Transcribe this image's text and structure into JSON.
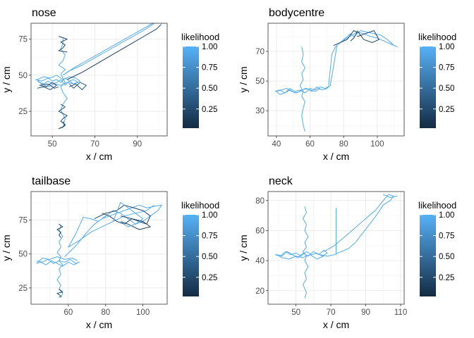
{
  "chart_data": [
    {
      "type": "line",
      "title": "nose",
      "xlabel": "x / cm",
      "ylabel": "y / cm",
      "xlim": [
        40,
        104
      ],
      "ylim": [
        8,
        86
      ],
      "xticks": [
        50,
        70,
        90
      ],
      "yticks": [
        25,
        50,
        75
      ],
      "legend": {
        "title": "likelihood",
        "ticks": [
          0.25,
          0.5,
          0.75,
          1.0
        ],
        "tick_labels": [
          "0.25",
          "0.50",
          "0.75",
          "1.00"
        ],
        "range": [
          0.02,
          1.0
        ],
        "low_color": "#132B43",
        "high_color": "#56B1F7",
        "placement": "right"
      },
      "grid": true,
      "series": [
        {
          "likelihood": 0.95,
          "x": [
            55,
            55,
            54,
            56,
            55,
            53,
            56,
            54,
            55,
            56,
            54,
            55,
            57,
            55,
            54,
            56,
            55
          ],
          "y": [
            76,
            72,
            68,
            64,
            60,
            57,
            54,
            51,
            48,
            45,
            42,
            38,
            34,
            30,
            26,
            20,
            14
          ]
        },
        {
          "likelihood": 0.25,
          "x": [
            54,
            56,
            53,
            57,
            55,
            54,
            56,
            55,
            53,
            56,
            55
          ],
          "y": [
            30,
            28,
            25,
            22,
            20,
            18,
            16,
            14,
            13,
            15,
            18
          ]
        },
        {
          "likelihood": 0.25,
          "x": [
            53,
            57,
            54,
            56,
            55,
            53,
            57
          ],
          "y": [
            77,
            75,
            73,
            71,
            69,
            67,
            66
          ]
        },
        {
          "likelihood": 0.95,
          "x": [
            42,
            45,
            48,
            50,
            52,
            54,
            56,
            58,
            60,
            62,
            60,
            58,
            56,
            54,
            52,
            50,
            48,
            46,
            44,
            43,
            46,
            49,
            52,
            55,
            58,
            61,
            63,
            60,
            57,
            54,
            51,
            48,
            45,
            43
          ],
          "y": [
            47,
            46,
            48,
            46,
            47,
            45,
            48,
            46,
            47,
            45,
            44,
            46,
            43,
            47,
            45,
            44,
            46,
            44,
            45,
            47,
            49,
            48,
            50,
            47,
            49,
            48,
            46,
            44,
            45,
            43,
            44,
            42,
            44,
            46
          ]
        },
        {
          "likelihood": 0.3,
          "x": [
            43,
            46,
            49,
            52,
            50,
            47,
            44,
            48,
            51,
            53
          ],
          "y": [
            41,
            42,
            40,
            43,
            45,
            42,
            43,
            44,
            41,
            42
          ]
        },
        {
          "likelihood": 0.3,
          "x": [
            58,
            61,
            64,
            66,
            63,
            60,
            58
          ],
          "y": [
            42,
            44,
            40,
            43,
            45,
            41,
            44
          ]
        },
        {
          "likelihood": 0.95,
          "x": [
            55,
            60,
            66,
            72,
            78,
            84,
            90,
            96,
            100
          ],
          "y": [
            50,
            55,
            60,
            65,
            70,
            75,
            80,
            85,
            88
          ]
        },
        {
          "likelihood": 0.95,
          "x": [
            100,
            94,
            88,
            82,
            76,
            70,
            64,
            58,
            56
          ],
          "y": [
            88,
            82,
            77,
            72,
            67,
            62,
            57,
            53,
            51
          ]
        },
        {
          "likelihood": 0.15,
          "x": [
            57,
            64,
            71,
            78,
            85,
            92,
            99,
            101
          ],
          "y": [
            47,
            52,
            58,
            64,
            70,
            76,
            82,
            85
          ]
        },
        {
          "likelihood": 0.95,
          "x": [
            101,
            102,
            103
          ],
          "y": [
            85,
            87,
            86
          ]
        }
      ]
    },
    {
      "type": "line",
      "title": "bodycentre",
      "xlabel": "x / cm",
      "ylabel": "y / cm",
      "xlim": [
        35,
        116
      ],
      "ylim": [
        13,
        89
      ],
      "xticks": [
        40,
        60,
        80,
        100
      ],
      "yticks": [
        30,
        50,
        70
      ],
      "legend": {
        "title": "likelihood",
        "ticks": [
          0.25,
          0.5,
          0.75,
          1.0
        ],
        "tick_labels": [
          "0.25",
          "0.50",
          "0.75",
          "1.00"
        ],
        "range": [
          0.02,
          1.0
        ],
        "low_color": "#132B43",
        "high_color": "#56B1F7",
        "placement": "right"
      },
      "grid": true,
      "series": [
        {
          "likelihood": 0.95,
          "x": [
            55,
            56,
            55,
            57,
            55,
            56,
            54,
            56,
            55,
            57,
            56,
            55,
            56,
            57
          ],
          "y": [
            73,
            68,
            63,
            59,
            55,
            51,
            47,
            43,
            40,
            36,
            32,
            27,
            20,
            16
          ]
        },
        {
          "likelihood": 0.95,
          "x": [
            39,
            42,
            45,
            48,
            51,
            54,
            57,
            60,
            63,
            66,
            69,
            72,
            70,
            67,
            64,
            61,
            58,
            55,
            52,
            49,
            46,
            43,
            40,
            42,
            45,
            48,
            51,
            54,
            57,
            60,
            63,
            66
          ],
          "y": [
            43,
            44,
            42,
            45,
            43,
            44,
            42,
            45,
            44,
            46,
            45,
            47,
            45,
            44,
            46,
            43,
            45,
            44,
            42,
            43,
            45,
            44,
            43,
            41,
            42,
            44,
            42,
            43,
            45,
            44,
            43,
            45
          ]
        },
        {
          "likelihood": 0.95,
          "x": [
            72,
            74,
            76,
            80,
            84,
            86,
            90,
            94,
            98,
            102,
            106,
            110,
            112,
            108,
            104,
            100,
            96,
            92,
            88,
            85,
            82,
            78,
            75,
            73,
            71
          ],
          "y": [
            47,
            60,
            74,
            78,
            82,
            80,
            84,
            83,
            82,
            81,
            78,
            74,
            73,
            75,
            77,
            79,
            80,
            82,
            83,
            81,
            79,
            76,
            73,
            68,
            47
          ]
        },
        {
          "likelihood": 0.2,
          "x": [
            74,
            78,
            82,
            86,
            88,
            86,
            84
          ],
          "y": [
            74,
            76,
            78,
            84,
            83,
            79,
            77
          ]
        },
        {
          "likelihood": 0.2,
          "x": [
            88,
            93,
            98,
            101,
            97,
            92,
            88
          ],
          "y": [
            80,
            82,
            84,
            78,
            76,
            78,
            84
          ]
        }
      ]
    },
    {
      "type": "line",
      "title": "tailbase",
      "xlabel": "x / cm",
      "ylabel": "y / cm",
      "xlim": [
        40,
        113
      ],
      "ylim": [
        13,
        96
      ],
      "xticks": [
        60,
        80,
        100
      ],
      "yticks": [
        25,
        50,
        75
      ],
      "legend": {
        "title": "likelihood",
        "ticks": [
          0.25,
          0.5,
          0.75,
          1.0
        ],
        "tick_labels": [
          "0.25",
          "0.50",
          "0.75",
          "1.00"
        ],
        "range": [
          0.02,
          1.0
        ],
        "low_color": "#132B43",
        "high_color": "#56B1F7",
        "placement": "right"
      },
      "grid": true,
      "series": [
        {
          "likelihood": 0.95,
          "x": [
            56,
            55,
            57,
            55,
            56,
            54,
            56,
            55,
            57,
            55,
            56,
            54,
            56,
            55,
            57,
            56
          ],
          "y": [
            71,
            67,
            63,
            59,
            55,
            51,
            48,
            45,
            42,
            39,
            35,
            31,
            27,
            24,
            21,
            18
          ]
        },
        {
          "likelihood": 0.2,
          "x": [
            55,
            57,
            54,
            56,
            55,
            56
          ],
          "y": [
            72,
            70,
            68,
            66,
            64,
            62
          ]
        },
        {
          "likelihood": 0.2,
          "x": [
            55,
            57,
            54,
            56,
            55
          ],
          "y": [
            24,
            22,
            21,
            19,
            18
          ]
        },
        {
          "likelihood": 0.95,
          "x": [
            43,
            46,
            49,
            52,
            55,
            58,
            61,
            64,
            66,
            63,
            60,
            57,
            54,
            51,
            48,
            45,
            43,
            46,
            50,
            54,
            58,
            62,
            65
          ],
          "y": [
            45,
            44,
            46,
            43,
            45,
            44,
            46,
            43,
            44,
            42,
            44,
            41,
            43,
            45,
            42,
            44,
            43,
            47,
            46,
            48,
            46,
            47,
            45
          ]
        },
        {
          "likelihood": 0.95,
          "x": [
            58,
            64,
            70,
            74,
            78,
            82,
            86,
            90,
            94,
            98,
            102,
            106,
            110,
            108,
            104,
            100,
            96,
            92,
            88,
            84,
            80,
            76,
            72,
            68,
            64,
            60,
            66,
            72,
            78,
            84,
            90,
            96,
            102,
            106
          ],
          "y": [
            48,
            56,
            66,
            72,
            76,
            78,
            80,
            82,
            84,
            86,
            84,
            85,
            86,
            82,
            78,
            74,
            72,
            76,
            80,
            82,
            78,
            74,
            76,
            77,
            65,
            55,
            60,
            66,
            70,
            74,
            78,
            80,
            82,
            86
          ]
        },
        {
          "likelihood": 0.2,
          "x": [
            74,
            80,
            86,
            90,
            95,
            100,
            104,
            102,
            98,
            94,
            90,
            86,
            82,
            78
          ],
          "y": [
            76,
            80,
            82,
            86,
            84,
            82,
            78,
            72,
            74,
            76,
            72,
            74,
            78,
            80
          ]
        },
        {
          "likelihood": 0.2,
          "x": [
            88,
            94,
            100,
            104,
            98,
            92,
            88
          ],
          "y": [
            78,
            76,
            74,
            70,
            68,
            72,
            74
          ]
        },
        {
          "likelihood": 0.95,
          "x": [
            84,
            88,
            92,
            96,
            100,
            96,
            92,
            88
          ],
          "y": [
            74,
            88,
            84,
            80,
            76,
            72,
            70,
            74
          ]
        }
      ]
    },
    {
      "type": "line",
      "title": "neck",
      "xlabel": "x / cm",
      "ylabel": "y / cm",
      "xlim": [
        34,
        112
      ],
      "ylim": [
        11,
        86
      ],
      "xticks": [
        50,
        70,
        90,
        110
      ],
      "yticks": [
        20,
        40,
        60,
        80
      ],
      "legend": {
        "title": "likelihood",
        "ticks": [
          0.25,
          0.5,
          0.75,
          1.0
        ],
        "tick_labels": [
          "0.25",
          "0.50",
          "0.75",
          "1.00"
        ],
        "range": [
          0.02,
          1.0
        ],
        "low_color": "#132B43",
        "high_color": "#56B1F7",
        "placement": "right"
      },
      "grid": true,
      "series": [
        {
          "likelihood": 0.95,
          "x": [
            55,
            56,
            54,
            56,
            55,
            57,
            55,
            56,
            54,
            56,
            55,
            57,
            55,
            56,
            54,
            56,
            55
          ],
          "y": [
            76,
            72,
            68,
            64,
            60,
            56,
            52,
            49,
            46,
            43,
            40,
            36,
            32,
            28,
            24,
            19,
            15
          ]
        },
        {
          "likelihood": 0.95,
          "x": [
            38,
            41,
            44,
            47,
            50,
            53,
            56,
            59,
            62,
            65,
            68,
            66,
            63,
            60,
            57,
            54,
            51,
            48,
            45,
            42,
            39,
            42,
            46,
            50,
            54,
            58,
            62,
            66
          ],
          "y": [
            44,
            43,
            46,
            44,
            45,
            43,
            46,
            44,
            45,
            43,
            45,
            47,
            44,
            46,
            43,
            45,
            42,
            44,
            46,
            43,
            44,
            42,
            41,
            43,
            42,
            44,
            41,
            43
          ]
        },
        {
          "likelihood": 0.95,
          "x": [
            73,
            73,
            73,
            73
          ],
          "y": [
            44,
            60,
            74,
            75
          ]
        },
        {
          "likelihood": 0.95,
          "x": [
            66,
            72,
            78,
            84,
            90,
            96,
            100,
            103,
            106,
            104,
            100,
            96,
            92,
            88,
            84,
            80,
            76,
            72,
            68,
            64
          ],
          "y": [
            46,
            50,
            56,
            62,
            68,
            74,
            80,
            84,
            83,
            80,
            77,
            70,
            64,
            58,
            52,
            48,
            46,
            44,
            43,
            44
          ]
        },
        {
          "likelihood": 0.95,
          "x": [
            100,
            104,
            108
          ],
          "y": [
            84,
            82,
            83
          ]
        }
      ]
    }
  ]
}
